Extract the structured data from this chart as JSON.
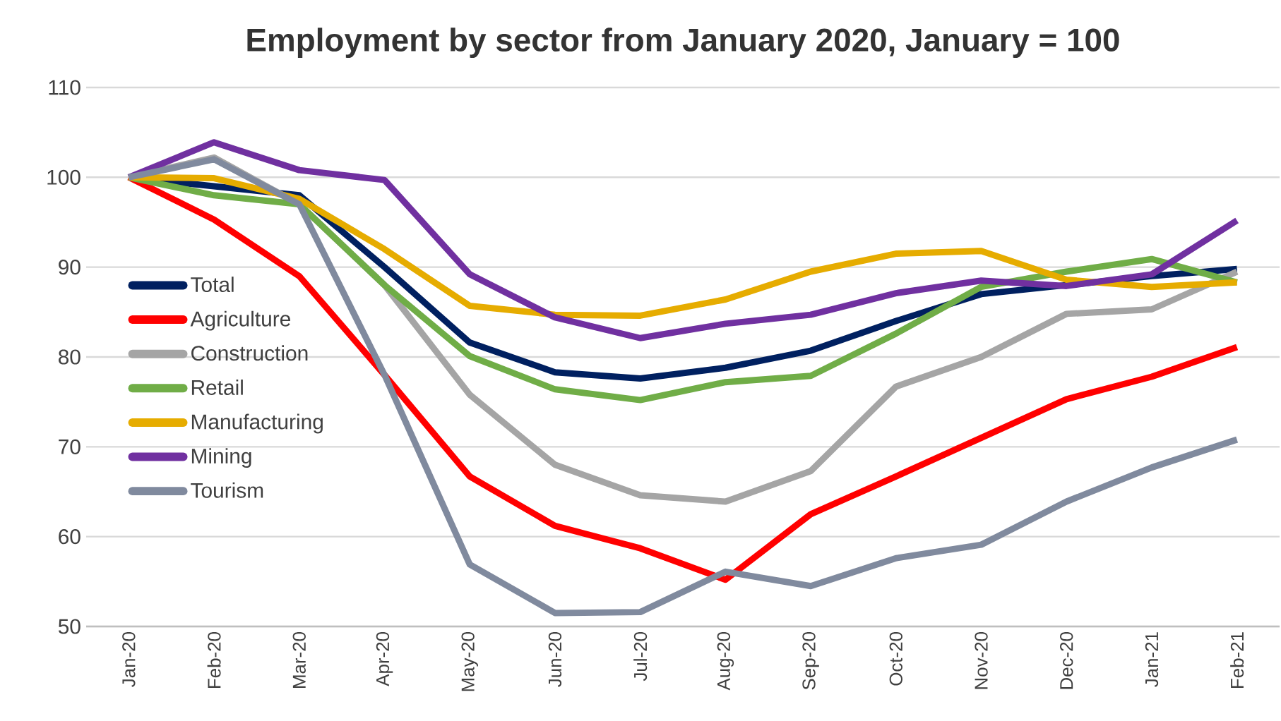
{
  "chart_data": {
    "type": "line",
    "title": "Employment by sector from January 2020, January = 100",
    "categories": [
      "Jan-20",
      "Feb-20",
      "Mar-20",
      "Apr-20",
      "May-20",
      "Jun-20",
      "Jul-20",
      "Aug-20",
      "Sep-20",
      "Oct-20",
      "Nov-20",
      "Dec-20",
      "Jan-21",
      "Feb-21"
    ],
    "series": [
      {
        "name": "Total",
        "color": "#002060",
        "values": [
          100,
          99,
          98,
          90,
          81.6,
          78.3,
          77.6,
          78.8,
          80.7,
          84,
          87,
          88,
          89,
          89.8
        ]
      },
      {
        "name": "Agriculture",
        "color": "#ff0000",
        "values": [
          100,
          95.3,
          89,
          78,
          66.7,
          61.2,
          58.7,
          55.2,
          62.5,
          66.7,
          71,
          75.3,
          77.8,
          81.1
        ]
      },
      {
        "name": "Construction",
        "color": "#a5a5a5",
        "values": [
          100,
          102.2,
          97,
          88,
          75.8,
          68,
          64.6,
          63.9,
          67.3,
          76.7,
          80,
          84.8,
          85.3,
          89.5
        ]
      },
      {
        "name": "Retail",
        "color": "#70ad47",
        "values": [
          100,
          98,
          97,
          88,
          80.1,
          76.4,
          75.2,
          77.2,
          77.9,
          82.6,
          87.8,
          89.5,
          90.9,
          88.3
        ]
      },
      {
        "name": "Manufacturing",
        "color": "#e6ac00",
        "values": [
          100,
          99.9,
          97.6,
          92,
          85.7,
          84.7,
          84.6,
          86.4,
          89.5,
          91.5,
          91.8,
          88.6,
          87.8,
          88.3
        ]
      },
      {
        "name": "Mining",
        "color": "#7030a0",
        "values": [
          100,
          103.9,
          100.8,
          99.7,
          89.2,
          84.4,
          82.1,
          83.7,
          84.7,
          87.1,
          88.5,
          87.9,
          89.2,
          95.2
        ]
      },
      {
        "name": "Tourism",
        "color": "#808a9e",
        "values": [
          100,
          102,
          97,
          78,
          56.9,
          51.5,
          51.6,
          56.1,
          54.5,
          57.6,
          59.1,
          63.9,
          67.7,
          70.8
        ]
      }
    ],
    "ylim": [
      50,
      110
    ],
    "yticks": [
      50,
      60,
      70,
      80,
      90,
      100,
      110
    ],
    "grid": "y",
    "legend": "left",
    "marker": "none",
    "line_style": "solid"
  }
}
